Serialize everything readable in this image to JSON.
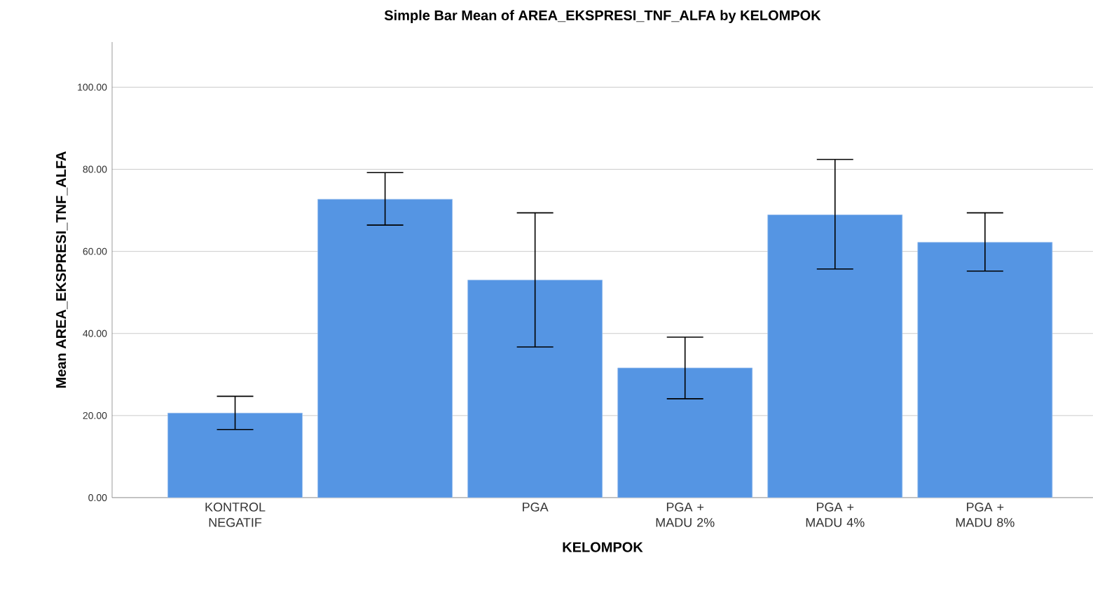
{
  "chart_data": {
    "type": "bar",
    "title": "Simple Bar Mean of AREA_EKSPRESI_TNF_ALFA by KELOMPOK",
    "xlabel": "KELOMPOK",
    "ylabel": "Mean AREA_EKSPRESI_TNF_ALFA",
    "categories": [
      "KONTROL NEGATIF",
      null,
      "PGA",
      "PGA + MADU 2%",
      "PGA + MADU 4%",
      "PGA + MADU 8%"
    ],
    "values": [
      20.6,
      72.7,
      53.0,
      31.6,
      68.9,
      62.2
    ],
    "errors": [
      [
        16.6,
        24.7
      ],
      [
        66.4,
        79.2
      ],
      [
        36.7,
        69.4
      ],
      [
        24.1,
        39.1
      ],
      [
        55.7,
        82.4
      ],
      [
        55.2,
        69.4
      ]
    ],
    "color": "#5595e3",
    "ylim": [
      0,
      111
    ],
    "yticks": [
      {
        "value": 0,
        "label": "0.00"
      },
      {
        "value": 20,
        "label": "20.00"
      },
      {
        "value": 40,
        "label": "40.00"
      },
      {
        "value": 60,
        "label": "60.00"
      },
      {
        "value": 80,
        "label": "80.00"
      },
      {
        "value": 100,
        "label": "100.00"
      }
    ],
    "grid": "y"
  }
}
